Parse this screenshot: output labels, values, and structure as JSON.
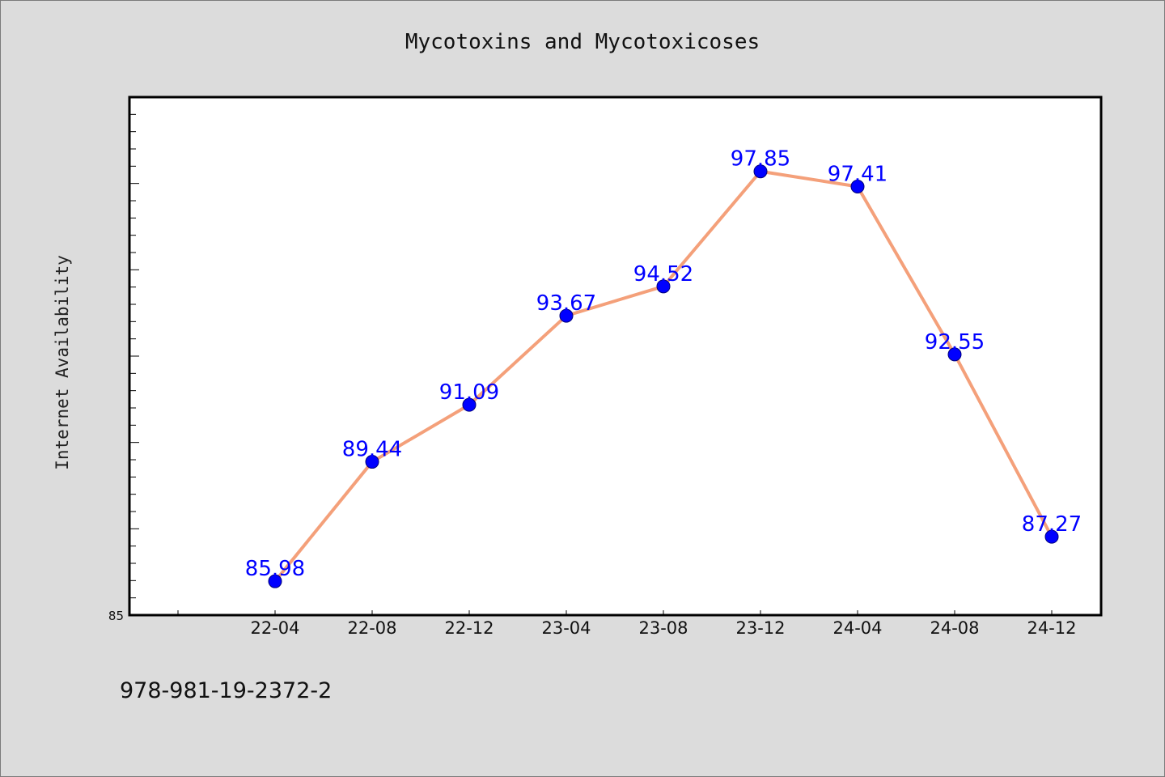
{
  "chart_data": {
    "type": "line",
    "title": "Mycotoxins and Mycotoxicoses",
    "ylabel": "Internet Availability",
    "xlabel": "",
    "categories": [
      "22-04",
      "22-08",
      "22-12",
      "23-04",
      "23-08",
      "23-12",
      "24-04",
      "24-08",
      "24-12"
    ],
    "series": [
      {
        "values": [
          85.98,
          89.44,
          91.09,
          93.67,
          94.52,
          97.85,
          97.41,
          92.55,
          87.27
        ],
        "labels": [
          "85.98",
          "89.44",
          "91.09",
          "93.67",
          "94.52",
          "97.85",
          "97.41",
          "92.55",
          "87.27"
        ],
        "line_color": "#f4a07a",
        "marker_color": "#0000ff"
      }
    ],
    "ylim": [
      85,
      100
    ],
    "y_tick_label": "85",
    "grid": false,
    "legend": "none"
  },
  "footer": {
    "isbn": "978-981-19-2372-2"
  }
}
